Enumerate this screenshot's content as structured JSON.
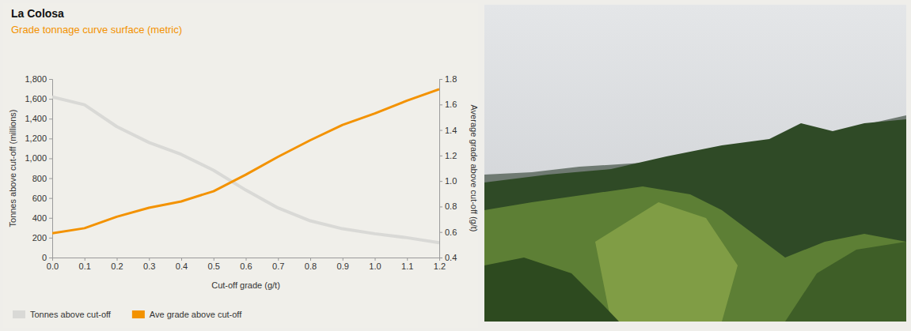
{
  "chart_data": {
    "type": "line",
    "title": "La Colosa",
    "subtitle": "Grade tonnage curve surface (metric)",
    "x_label": "Cut-off grade (g/t)",
    "y_label": "Tonnes above cut-off (millions)",
    "y2_label": "Average grade above cut-off (g/t)",
    "x": [
      0,
      0.1,
      0.2,
      0.3,
      0.4,
      0.5,
      0.6,
      0.7,
      0.8,
      0.9,
      1.0,
      1.1,
      1.2
    ],
    "series": [
      {
        "name": "Tonnes above cut-off",
        "color": "#d9d9d6",
        "values": [
          1620,
          1540,
          1320,
          1160,
          1040,
          880,
          680,
          500,
          370,
          290,
          240,
          200,
          150
        ]
      },
      {
        "name": "Ave grade above cut-off",
        "color": "#f39200",
        "axis": "y2",
        "values": [
          0.59,
          0.63,
          0.72,
          0.79,
          0.84,
          0.92,
          1.05,
          1.19,
          1.32,
          1.44,
          1.53,
          1.63,
          1.72
        ]
      }
    ],
    "xlim": [
      0,
      1.2
    ],
    "xticks": [
      {
        "value": 0,
        "label": "0.0"
      },
      0.1,
      0.2,
      0.3,
      0.4,
      0.5,
      0.6,
      0.7,
      0.8,
      0.9,
      {
        "value": 1.0,
        "label": "1.0"
      },
      1.1,
      1.2
    ],
    "ylim": [
      0,
      1800
    ],
    "yticks": [
      0,
      200,
      400,
      600,
      800,
      {
        "value": 1000,
        "label": "1,000"
      },
      {
        "value": 1200,
        "label": "1,200"
      },
      {
        "value": 1400,
        "label": "1,400"
      },
      {
        "value": 1600,
        "label": "1,600"
      },
      {
        "value": 1800,
        "label": "1,800"
      }
    ],
    "y2lim": [
      0.4,
      1.8
    ],
    "y2ticks": [
      0.4,
      0.6,
      0.8,
      {
        "value": 1.0,
        "label": "1.0"
      },
      1.2,
      1.4,
      1.6,
      1.8
    ],
    "grid": false,
    "legend": "bottom"
  }
}
